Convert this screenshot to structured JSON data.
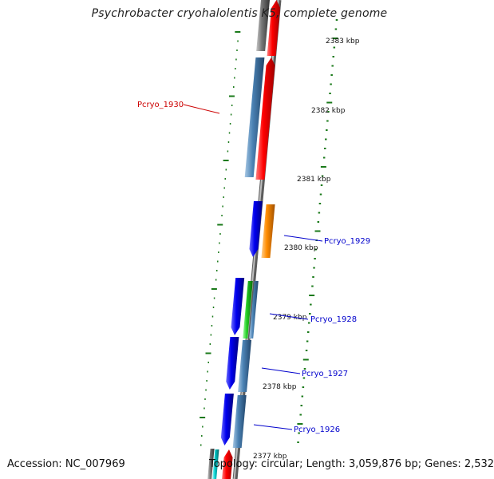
{
  "title": "Psychrobacter cryohalolentis K5, complete genome",
  "footer": {
    "accession": "Accession: NC_007969",
    "topology": "Topology: circular; Length: 3,059,876 bp; Genes: 2,532"
  },
  "colors": {
    "backbone": "#8c8c8c",
    "tick": "#1a7a1a",
    "red": "#ff0000",
    "blue": "#0000ee",
    "steelblue": "#4a82b4",
    "orange": "#ff8c00",
    "green": "#22cc22",
    "gray": "#777777",
    "cyan": "#00cccc",
    "label_red": "#cc0000",
    "label_blue": "#0000cc"
  },
  "scale_labels": [
    {
      "kbp": 2383,
      "text": "2383 kbp"
    },
    {
      "kbp": 2382,
      "text": "2382 kbp"
    },
    {
      "kbp": 2381,
      "text": "2381 kbp"
    },
    {
      "kbp": 2380,
      "text": "2380 kbp"
    },
    {
      "kbp": 2379,
      "text": "2379 kbp"
    },
    {
      "kbp": 2378,
      "text": "2378 kbp"
    },
    {
      "kbp": 2377,
      "text": "2377 kbp"
    }
  ],
  "gene_labels": [
    {
      "text": "Pcryo_1930",
      "color": "label_red"
    },
    {
      "text": "Pcryo_1929",
      "color": "label_blue"
    },
    {
      "text": "Pcryo_1928",
      "color": "label_blue"
    },
    {
      "text": "Pcryo_1927",
      "color": "label_blue"
    },
    {
      "text": "Pcryo_1926",
      "color": "label_blue"
    }
  ]
}
